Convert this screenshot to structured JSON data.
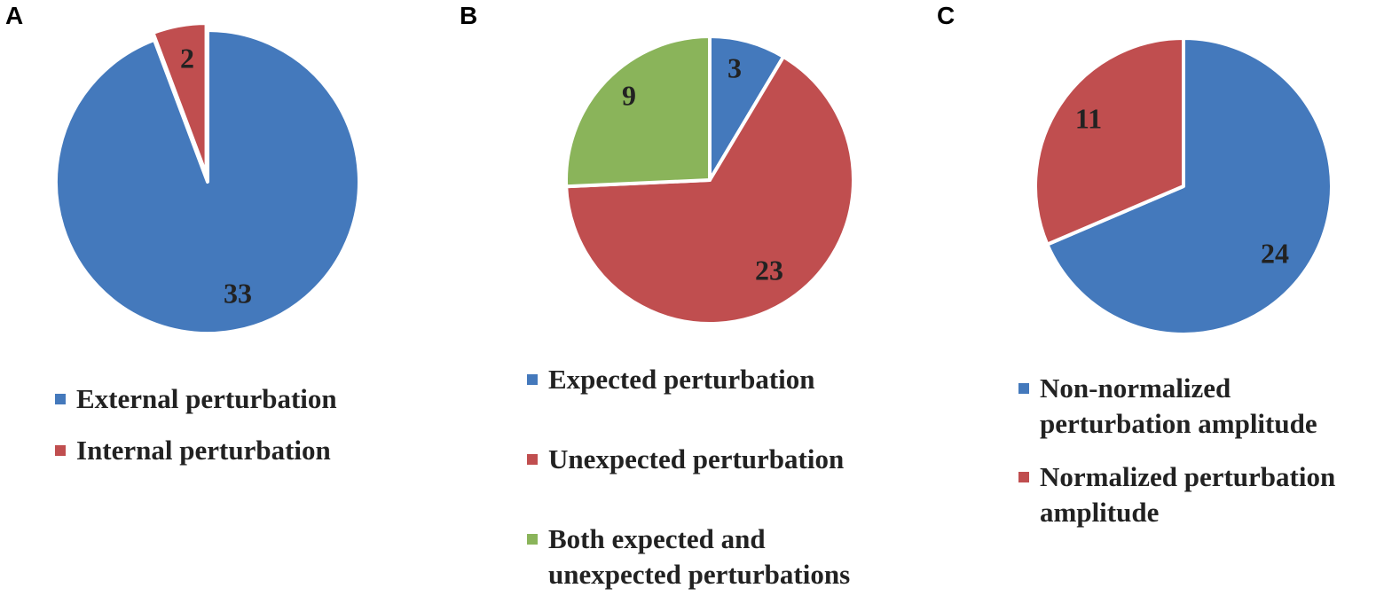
{
  "chart_data": [
    {
      "type": "pie",
      "panel": "A",
      "legend_position": "bottom",
      "slices": [
        {
          "label": "External perturbation",
          "value": 33,
          "color": "#4479bc"
        },
        {
          "label": "Internal perturbation",
          "value": 2,
          "color": "#c04e4f"
        }
      ]
    },
    {
      "type": "pie",
      "panel": "B",
      "legend_position": "bottom",
      "slices": [
        {
          "label": "Expected perturbation",
          "value": 3,
          "color": "#4479bc"
        },
        {
          "label": "Unexpected perturbation",
          "value": 23,
          "color": "#c04e4f"
        },
        {
          "label": "Both expected and unexpected perturbations",
          "value": 9,
          "color": "#8ab45a"
        }
      ]
    },
    {
      "type": "pie",
      "panel": "C",
      "legend_position": "bottom",
      "slices": [
        {
          "label": "Non-normalized perturbation amplitude",
          "value": 24,
          "color": "#4479bc"
        },
        {
          "label": "Normalized perturbation amplitude",
          "value": 11,
          "color": "#c04e4f"
        }
      ]
    }
  ]
}
